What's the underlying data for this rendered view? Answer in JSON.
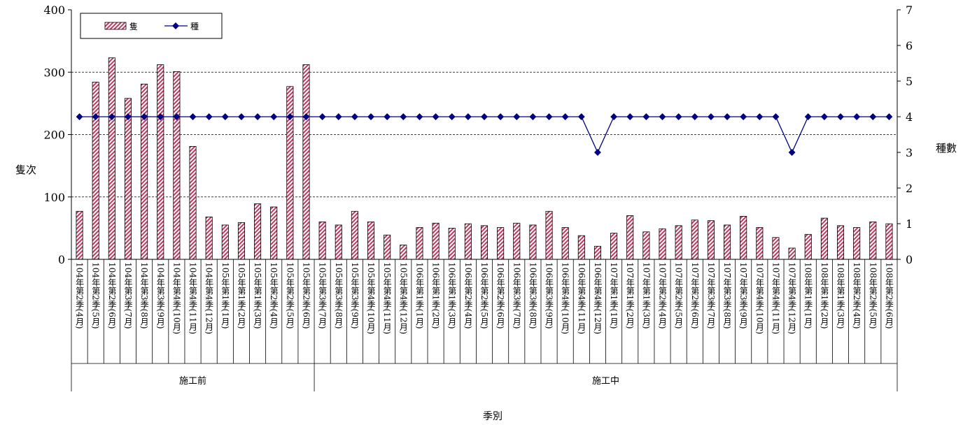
{
  "chart_data": {
    "type": "bar",
    "ylabel": "隻次",
    "y2label": "種數",
    "xlabel": "季別",
    "ylim": [
      0,
      400
    ],
    "y2lim": [
      0,
      7
    ],
    "yticks": [
      "0",
      "100",
      "200",
      "300",
      "400"
    ],
    "y2ticks": [
      "0",
      "1",
      "2",
      "3",
      "4",
      "5",
      "6",
      "7"
    ],
    "grid": true,
    "legend_position": "top-left",
    "categories": [
      "104年第2季(4月)",
      "104年第2季(5月)",
      "104年第2季(6月)",
      "104年第3季(7月)",
      "104年第3季(8月)",
      "104年第3季(9月)",
      "104年第4季(10月)",
      "104年第4季(11月)",
      "104年第4季(12月)",
      "105年第1季(1月)",
      "105年第1季(2月)",
      "105年第1季(3月)",
      "105年第2季(4月)",
      "105年第2季(5月)",
      "105年第2季(6月)",
      "105年第3季(7月)",
      "105年第3季(8月)",
      "105年第3季(9月)",
      "105年第4季(10月)",
      "105年第4季(11月)",
      "105年第4季(12月)",
      "106年第1季(1月)",
      "106年第1季(2月)",
      "106年第1季(3月)",
      "106年第2季(4月)",
      "106年第2季(5月)",
      "106年第2季(6月)",
      "106年第3季(7月)",
      "106年第3季(8月)",
      "106年第3季(9月)",
      "106年第4季(10月)",
      "106年第4季(11月)",
      "106年第4季(12月)",
      "107年第1季(1月)",
      "107年第1季(2月)",
      "107年第1季(3月)",
      "107年第2季(4月)",
      "107年第2季(5月)",
      "107年第2季(6月)",
      "107年第3季(7月)",
      "107年第3季(8月)",
      "107年第3季(9月)",
      "107年第4季(10月)",
      "107年第4季(11月)",
      "107年第4季(12月)",
      "108年第1季(1月)",
      "108年第1季(2月)",
      "108年第1季(3月)",
      "108年第2季(4月)",
      "108年第2季(5月)",
      "108年第2季(6月)"
    ],
    "groups": [
      {
        "label": "施工前",
        "count": 15
      },
      {
        "label": "施工中",
        "count": 36
      }
    ],
    "series": [
      {
        "name": "隻",
        "type": "bar",
        "axis": "left",
        "color": "#c0395f",
        "values": [
          77,
          284,
          323,
          258,
          281,
          312,
          301,
          181,
          68,
          55,
          59,
          89,
          84,
          277,
          312,
          60,
          55,
          77,
          60,
          39,
          23,
          51,
          58,
          50,
          57,
          54,
          51,
          58,
          55,
          77,
          51,
          38,
          21,
          42,
          70,
          44,
          49,
          54,
          63,
          62,
          55,
          69,
          51,
          35,
          18,
          40,
          66,
          54,
          51,
          60,
          57
        ]
      },
      {
        "name": "種",
        "type": "line",
        "axis": "right",
        "color": "#000080",
        "values": [
          4,
          4,
          4,
          4,
          4,
          4,
          4,
          4,
          4,
          4,
          4,
          4,
          4,
          4,
          4,
          4,
          4,
          4,
          4,
          4,
          4,
          4,
          4,
          4,
          4,
          4,
          4,
          4,
          4,
          4,
          4,
          4,
          3,
          4,
          4,
          4,
          4,
          4,
          4,
          4,
          4,
          4,
          4,
          4,
          3,
          4,
          4,
          4,
          4,
          4,
          4
        ]
      }
    ]
  }
}
